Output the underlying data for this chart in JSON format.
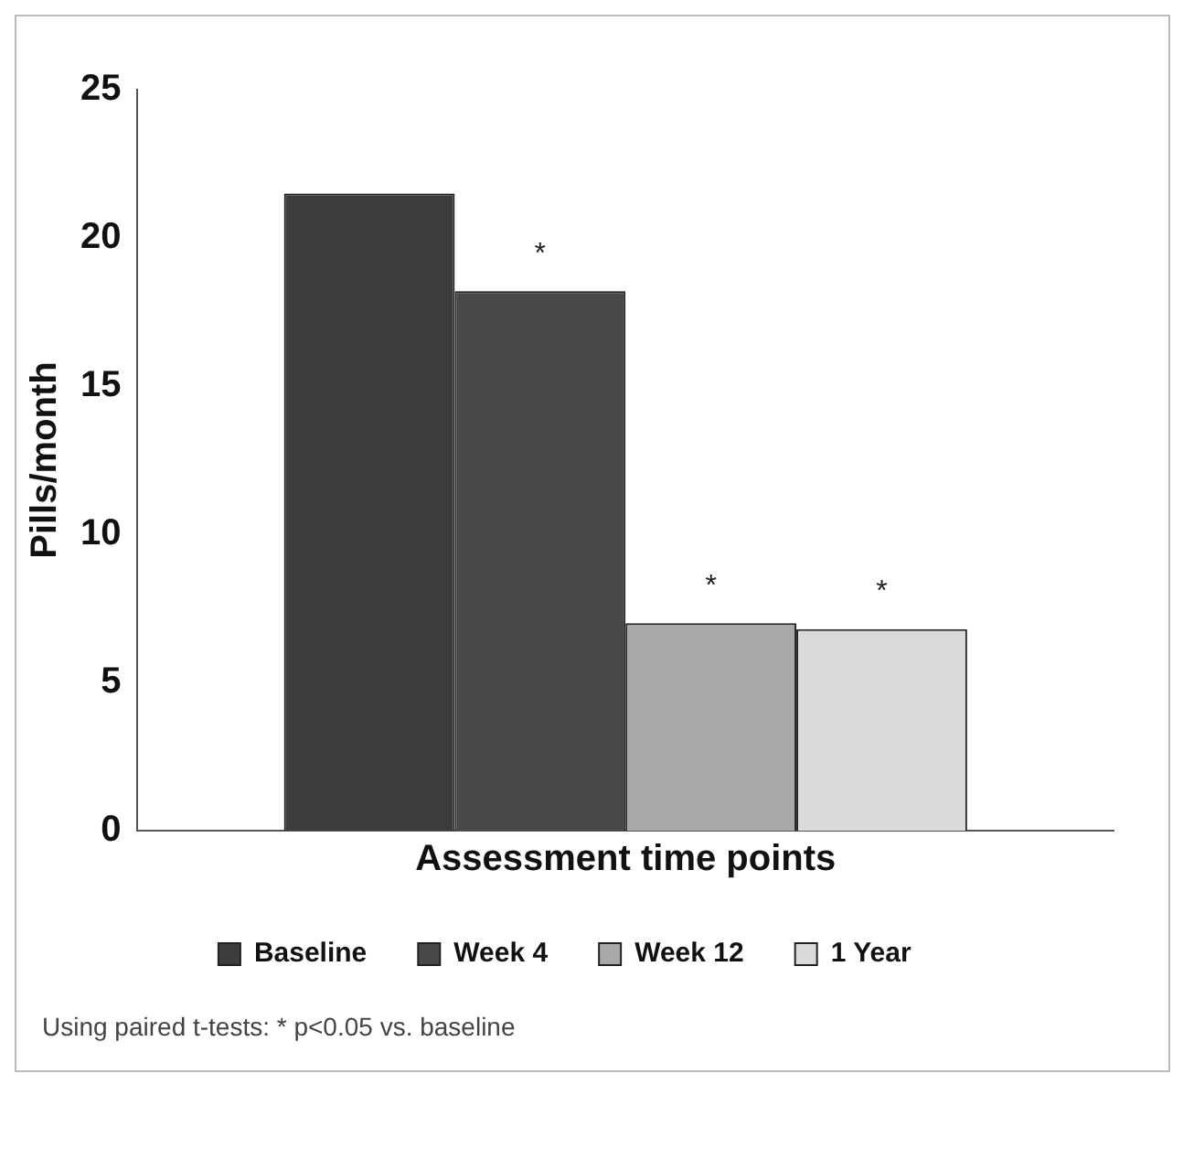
{
  "chart_data": {
    "type": "bar",
    "xlabel": "Assessment time points",
    "ylabel": "Pills/month",
    "categories": [
      null
    ],
    "series": [
      {
        "name": "Baseline",
        "color": "#3c3c3c",
        "values": [
          21.5
        ]
      },
      {
        "name": "Week 4",
        "color": "#484848",
        "values": [
          18.2
        ],
        "value_labels": [
          "*"
        ]
      },
      {
        "name": "Week 12",
        "color": "#a8a8a8",
        "values": [
          7.0
        ],
        "value_labels": [
          "*"
        ]
      },
      {
        "name": "1 Year",
        "color": "#dadada",
        "values": [
          6.8
        ],
        "value_labels": [
          "*"
        ]
      }
    ],
    "ylim": [
      0,
      25
    ],
    "yticks": [
      0,
      5,
      10,
      15,
      20,
      25
    ],
    "grid": false,
    "legend": "bottom",
    "annotations": [
      "Using paired t-tests: * p<0.05 vs. baseline"
    ]
  }
}
